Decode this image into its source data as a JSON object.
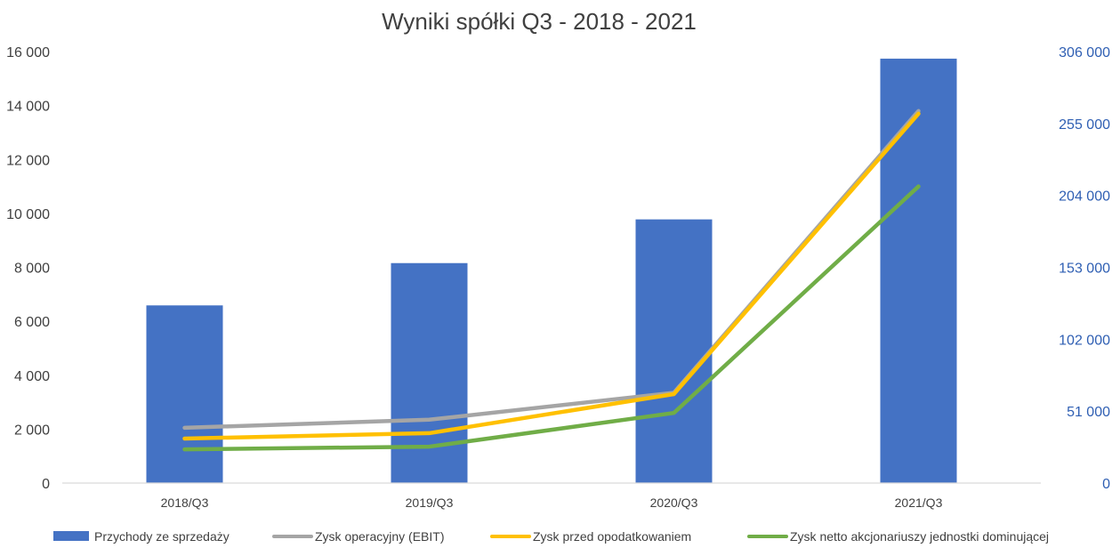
{
  "chart_data": {
    "type": "bar",
    "title": "Wyniki spółki Q3 - 2018 - 2021",
    "categories": [
      "2018/Q3",
      "2019/Q3",
      "2020/Q3",
      "2021/Q3"
    ],
    "y_left": {
      "range": [
        0,
        16000
      ],
      "ticks": [
        0,
        2000,
        4000,
        6000,
        8000,
        10000,
        12000,
        14000,
        16000
      ],
      "tick_labels": [
        "0",
        "2 000",
        "4 000",
        "6 000",
        "8 000",
        "10 000",
        "12 000",
        "14 000",
        "16 000"
      ]
    },
    "y_right": {
      "range": [
        0,
        306000
      ],
      "ticks": [
        0,
        51000,
        102000,
        153000,
        204000,
        255000,
        306000
      ],
      "tick_labels": [
        "0",
        "51 000",
        "102 000",
        "153 000",
        "204 000",
        "255 000",
        "306 000"
      ],
      "color": "#2f5fb3"
    },
    "series": [
      {
        "name": "Przychody ze sprzedaży",
        "type": "bar",
        "axis": "right",
        "color": "#4472c4",
        "values": [
          126000,
          156000,
          187000,
          301000
        ]
      },
      {
        "name": "Zysk operacyjny (EBIT)",
        "type": "line",
        "axis": "left",
        "color": "#a5a5a5",
        "values": [
          2050,
          2350,
          3350,
          13800
        ]
      },
      {
        "name": "Zysk przed opodatkowaniem",
        "type": "line",
        "axis": "left",
        "color": "#ffc000",
        "values": [
          1650,
          1850,
          3300,
          13700
        ]
      },
      {
        "name": "Zysk netto akcjonariuszy jednostki dominującej",
        "type": "line",
        "axis": "left",
        "color": "#70ad47",
        "values": [
          1250,
          1350,
          2600,
          11000
        ]
      }
    ],
    "grid": false,
    "legend_position": "bottom"
  }
}
